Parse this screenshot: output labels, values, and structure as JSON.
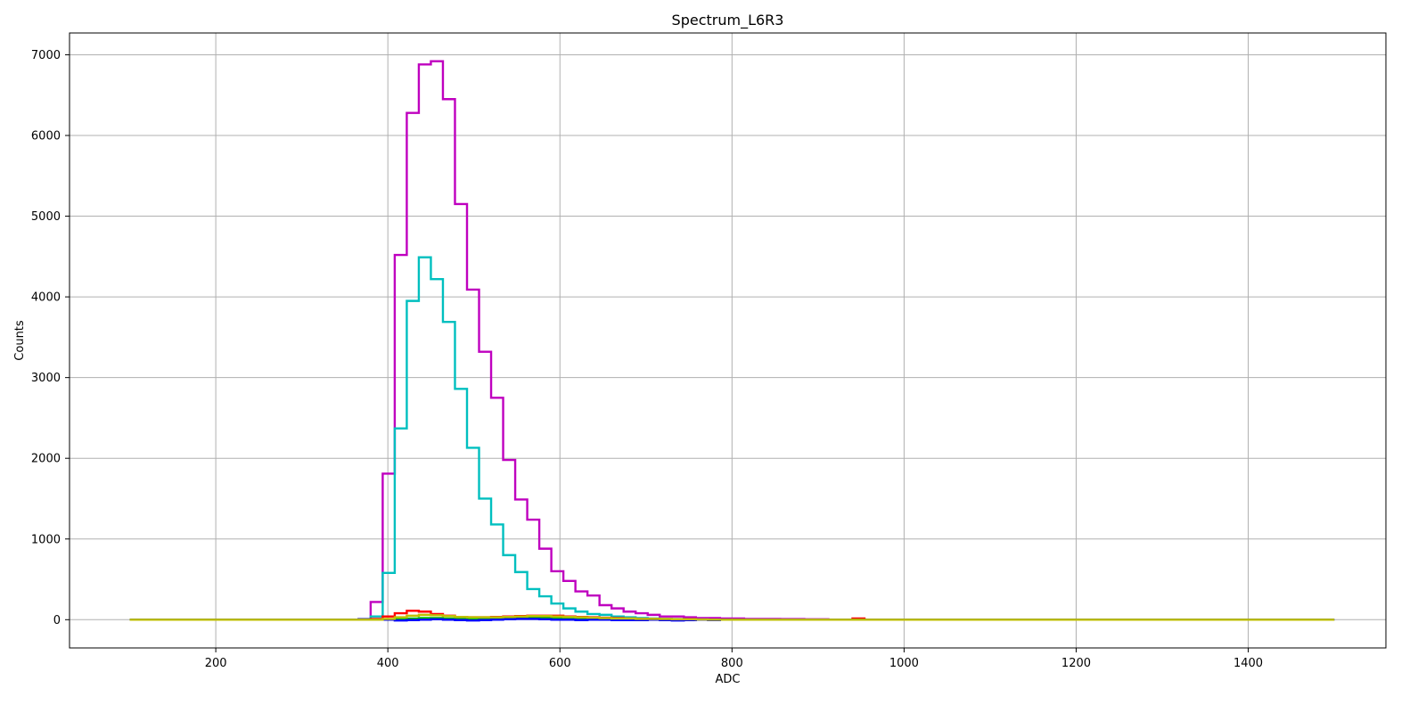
{
  "chart_data": {
    "type": "line",
    "title": "Spectrum_L6R3",
    "xlabel": "ADC",
    "ylabel": "Counts",
    "xlim": [
      30,
      1560
    ],
    "ylim": [
      -350,
      7270
    ],
    "xticks": [
      200,
      400,
      600,
      800,
      1000,
      1200,
      1400
    ],
    "yticks": [
      0,
      1000,
      2000,
      3000,
      4000,
      5000,
      6000,
      7000
    ],
    "grid": true,
    "legend": "none",
    "bin_width": 14,
    "series": [
      {
        "color": "#bf00bf",
        "x": [
          100,
          366,
          380,
          394,
          408,
          422,
          436,
          450,
          464,
          478,
          492,
          506,
          520,
          534,
          548,
          562,
          576,
          590,
          604,
          618,
          632,
          646,
          660,
          674,
          688,
          702,
          716,
          730,
          744,
          758,
          772,
          786,
          800,
          814,
          828,
          842,
          856,
          870,
          884,
          898,
          912,
          926,
          1500
        ],
        "y": [
          0,
          10,
          220,
          1810,
          4520,
          6280,
          6880,
          6920,
          6450,
          5150,
          4090,
          3320,
          2750,
          1980,
          1490,
          1240,
          880,
          600,
          480,
          350,
          300,
          180,
          140,
          100,
          80,
          60,
          40,
          40,
          30,
          20,
          20,
          15,
          15,
          10,
          10,
          10,
          8,
          8,
          5,
          5,
          0,
          0,
          0
        ]
      },
      {
        "color": "#00bfbf",
        "x": [
          100,
          366,
          380,
          394,
          408,
          422,
          436,
          450,
          464,
          478,
          492,
          506,
          520,
          534,
          548,
          562,
          576,
          590,
          604,
          618,
          632,
          646,
          660,
          674,
          688,
          702,
          716,
          730,
          744,
          758,
          772,
          1500
        ],
        "y": [
          0,
          5,
          40,
          580,
          2370,
          3950,
          4490,
          4220,
          3690,
          2860,
          2130,
          1500,
          1180,
          800,
          590,
          380,
          290,
          200,
          140,
          100,
          70,
          60,
          40,
          30,
          20,
          15,
          10,
          8,
          5,
          3,
          0,
          0
        ]
      },
      {
        "color": "#ff0000",
        "x": [
          100,
          380,
          394,
          408,
          422,
          436,
          450,
          464,
          478,
          492,
          506,
          520,
          534,
          548,
          562,
          576,
          590,
          604,
          618,
          632,
          646,
          660,
          674,
          688,
          702,
          716,
          730,
          744,
          758,
          940,
          954,
          1500
        ],
        "y": [
          0,
          10,
          40,
          80,
          110,
          100,
          70,
          50,
          35,
          30,
          30,
          35,
          40,
          45,
          50,
          50,
          50,
          40,
          35,
          30,
          25,
          20,
          15,
          10,
          10,
          8,
          5,
          5,
          0,
          15,
          0,
          0
        ]
      },
      {
        "color": "#00bf00",
        "x": [
          100,
          394,
          408,
          422,
          436,
          450,
          464,
          478,
          492,
          506,
          520,
          534,
          548,
          562,
          576,
          590,
          604,
          618,
          632,
          646,
          660,
          674,
          688,
          702,
          716,
          1500
        ],
        "y": [
          0,
          5,
          10,
          15,
          20,
          20,
          15,
          15,
          10,
          10,
          10,
          15,
          20,
          25,
          25,
          25,
          20,
          20,
          15,
          15,
          10,
          10,
          5,
          5,
          0,
          0
        ]
      },
      {
        "color": "#0000ff",
        "x": [
          100,
          408,
          422,
          436,
          450,
          464,
          478,
          492,
          506,
          520,
          534,
          548,
          562,
          576,
          590,
          604,
          618,
          632,
          646,
          660,
          674,
          688,
          702,
          716,
          730,
          744,
          758,
          772,
          786,
          1500
        ],
        "y": [
          0,
          -10,
          -5,
          0,
          5,
          0,
          -5,
          -10,
          -5,
          0,
          5,
          10,
          10,
          5,
          0,
          0,
          -5,
          0,
          0,
          -5,
          -5,
          -5,
          0,
          -5,
          -10,
          -5,
          0,
          -5,
          0,
          0
        ]
      },
      {
        "color": "#bfbf00",
        "x": [
          100,
          394,
          408,
          422,
          436,
          450,
          464,
          478,
          492,
          506,
          520,
          534,
          548,
          562,
          576,
          590,
          604,
          618,
          632,
          646,
          660,
          674,
          688,
          702,
          716,
          730,
          744,
          758,
          772,
          1500
        ],
        "y": [
          0,
          10,
          30,
          50,
          60,
          55,
          45,
          35,
          30,
          30,
          30,
          35,
          40,
          45,
          45,
          40,
          35,
          30,
          25,
          20,
          15,
          15,
          10,
          10,
          8,
          5,
          5,
          3,
          0,
          0
        ]
      }
    ]
  }
}
